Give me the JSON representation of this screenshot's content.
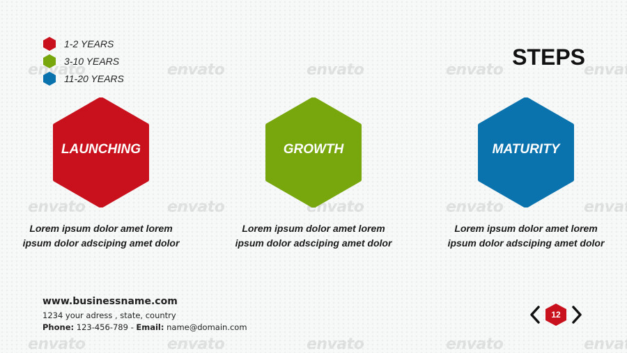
{
  "watermark": "envato",
  "legend": [
    {
      "label": "1-2 YEARS",
      "color": "#c8111c"
    },
    {
      "label": "3-10 YEARS",
      "color": "#77a70d"
    },
    {
      "label": "11-20 YEARS",
      "color": "#0a73ad"
    }
  ],
  "title": "STEPS",
  "steps": [
    {
      "label": "LAUNCHING",
      "color": "#c8111c",
      "line1": "Lorem ipsum dolor amet lorem",
      "line2": "ipsum dolor adsciping amet dolor"
    },
    {
      "label": "GROWTH",
      "color": "#77a70d",
      "line1": "Lorem ipsum dolor amet lorem",
      "line2": "ipsum dolor adsciping amet dolor"
    },
    {
      "label": "MATURITY",
      "color": "#0a73ad",
      "line1": "Lorem ipsum dolor amet lorem",
      "line2": "ipsum dolor adsciping amet dolor"
    }
  ],
  "footer": {
    "website": "www.businessname.com",
    "address": "1234 your adress , state, country",
    "phone_label": "Phone:",
    "phone": "123-456-789",
    "separator": "-",
    "email_label": "Email:",
    "email": "name@domain.com"
  },
  "pager": {
    "page": "12",
    "prev_icon": "chevron-left",
    "next_icon": "chevron-right",
    "accent": "#c8111c"
  }
}
